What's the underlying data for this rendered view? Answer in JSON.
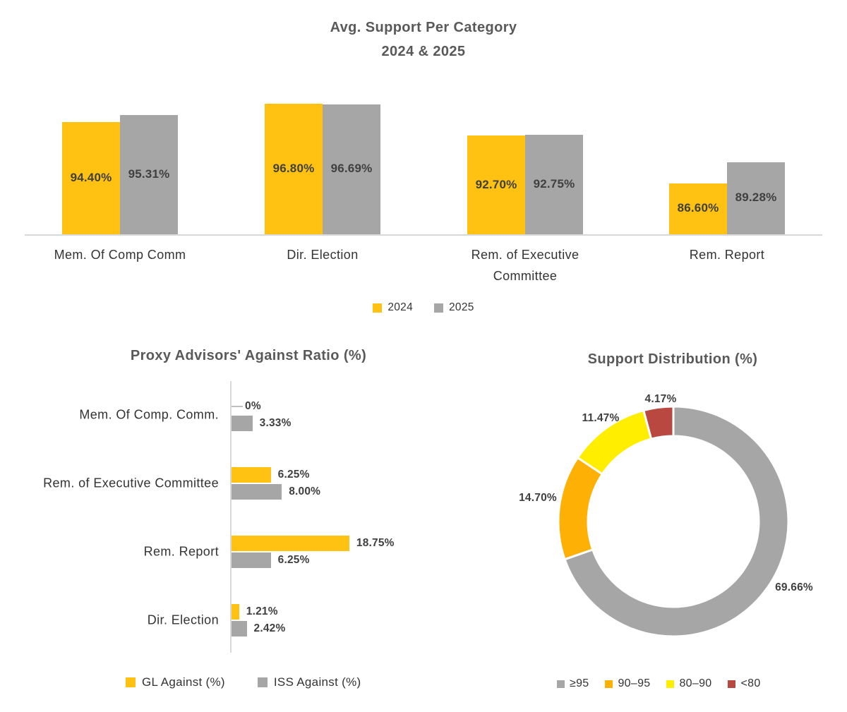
{
  "colors": {
    "gold": "#FFC213",
    "gray": "#A6A6A6",
    "donut_orange": "#FFB005",
    "bright_yellow": "#FFEE00",
    "red": "#B94841",
    "title_text": "#595959",
    "value_text": "#404040",
    "category_text": "#333333",
    "axis_line": "#D9D9D9"
  },
  "chart_data": [
    {
      "id": "avg_support",
      "type": "bar",
      "title": "Avg. Support Per Category",
      "subtitle": "2024 & 2025",
      "categories": [
        "Mem. Of Comp Comm",
        "Dir. Election",
        "Rem. of Executive Committee",
        "Rem. Report"
      ],
      "series": [
        {
          "name": "2024",
          "color": "#FFC213",
          "values": [
            94.4,
            96.8,
            92.7,
            86.6
          ],
          "labels": [
            "94.40%",
            "96.80%",
            "92.70%",
            "86.60%"
          ]
        },
        {
          "name": "2025",
          "color": "#A6A6A6",
          "values": [
            95.31,
            96.69,
            92.75,
            89.28
          ],
          "labels": [
            "95.31%",
            "96.69%",
            "92.75%",
            "89.28%"
          ]
        }
      ],
      "ylim": [
        80,
        97.5
      ],
      "grid": false,
      "legend_position": "bottom",
      "legend": [
        "2024",
        "2025"
      ]
    },
    {
      "id": "against_ratio",
      "type": "bar",
      "orientation": "horizontal",
      "title": "Proxy Advisors' Against Ratio (%)",
      "categories": [
        "Mem. Of Comp. Comm.",
        "Rem. of Executive Committee",
        "Rem. Report",
        "Dir. Election"
      ],
      "series": [
        {
          "name": "GL Against (%)",
          "color": "#FFC213",
          "values": [
            0,
            6.25,
            18.75,
            1.21
          ],
          "labels": [
            "0%",
            "6.25%",
            "18.75%",
            "1.21%"
          ]
        },
        {
          "name": "ISS Against (%)",
          "color": "#A6A6A6",
          "values": [
            3.33,
            8.0,
            6.25,
            2.42
          ],
          "labels": [
            "3.33%",
            "8.00%",
            "6.25%",
            "2.42%"
          ]
        }
      ],
      "xlim": [
        0,
        20
      ],
      "grid": false,
      "legend_position": "bottom",
      "legend": [
        "GL Against (%)",
        "ISS Against (%)"
      ]
    },
    {
      "id": "support_distribution",
      "type": "pie",
      "subtype": "donut",
      "title": "Support Distribution (%)",
      "start_angle_deg": 0,
      "direction": "clockwise",
      "slices": [
        {
          "label": "≥95",
          "value": 69.66,
          "text": "69.66%",
          "color": "#A6A6A6"
        },
        {
          "label": "90–95",
          "value": 14.7,
          "text": "14.70%",
          "color": "#FFB005"
        },
        {
          "label": "80–90",
          "value": 11.47,
          "text": "11.47%",
          "color": "#FFEE00"
        },
        {
          "label": "<80",
          "value": 4.17,
          "text": "4.17%",
          "color": "#B94841"
        }
      ],
      "legend_position": "bottom",
      "legend": [
        "≥95",
        "90–95",
        "80–90",
        "<80"
      ]
    }
  ]
}
